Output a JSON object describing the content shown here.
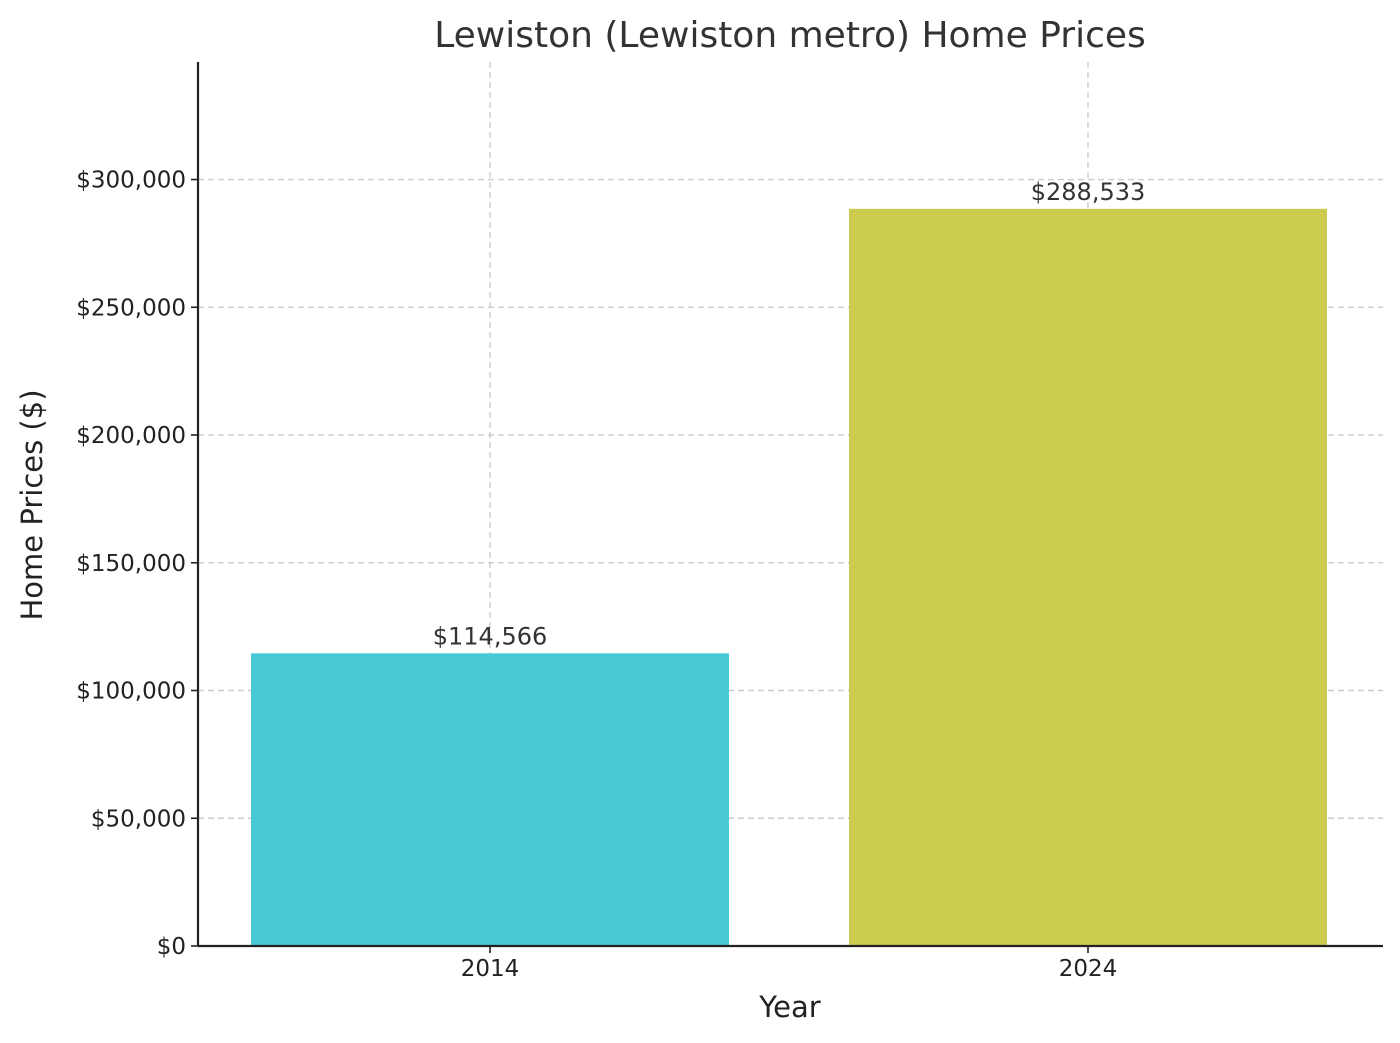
{
  "chart_data": {
    "type": "bar",
    "title": "Lewiston (Lewiston metro) Home Prices",
    "xlabel": "Year",
    "ylabel": "Home Prices ($)",
    "categories": [
      "2014",
      "2024"
    ],
    "values": [
      114566,
      288533
    ],
    "value_labels": [
      "$114,566",
      "$288,533"
    ],
    "colors": [
      "#48c9d6",
      "#cbcb50"
    ],
    "ylim": [
      0,
      346000
    ],
    "yticks": [
      0,
      50000,
      100000,
      150000,
      200000,
      250000,
      300000
    ],
    "ytick_labels": [
      "$0",
      "$50,000",
      "$100,000",
      "$150,000",
      "$200,000",
      "$250,000",
      "$300,000"
    ],
    "grid": true,
    "legend": "none"
  }
}
